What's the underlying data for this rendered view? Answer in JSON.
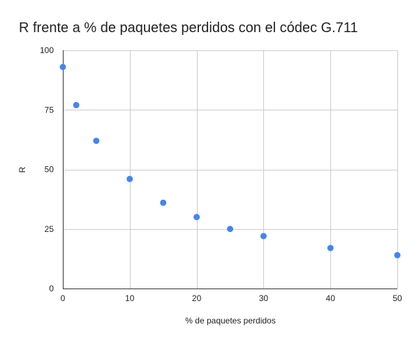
{
  "chart_data": {
    "type": "scatter",
    "title": "R frente a % de paquetes perdidos con el códec G.711",
    "xlabel": "% de paquetes perdidos",
    "ylabel": "R",
    "xlim": [
      0,
      50
    ],
    "ylim": [
      0,
      100
    ],
    "xticks": [
      0,
      10,
      20,
      30,
      40,
      50
    ],
    "yticks": [
      0,
      25,
      50,
      75,
      100
    ],
    "grid": true,
    "legend": "none",
    "colors": {
      "point": "#4285f4"
    },
    "series": [
      {
        "x": [
          0,
          2,
          5,
          10,
          15,
          20,
          25,
          30,
          40,
          50
        ],
        "y": [
          93,
          77,
          62,
          46,
          36,
          30,
          25,
          22,
          17,
          14
        ]
      }
    ]
  }
}
